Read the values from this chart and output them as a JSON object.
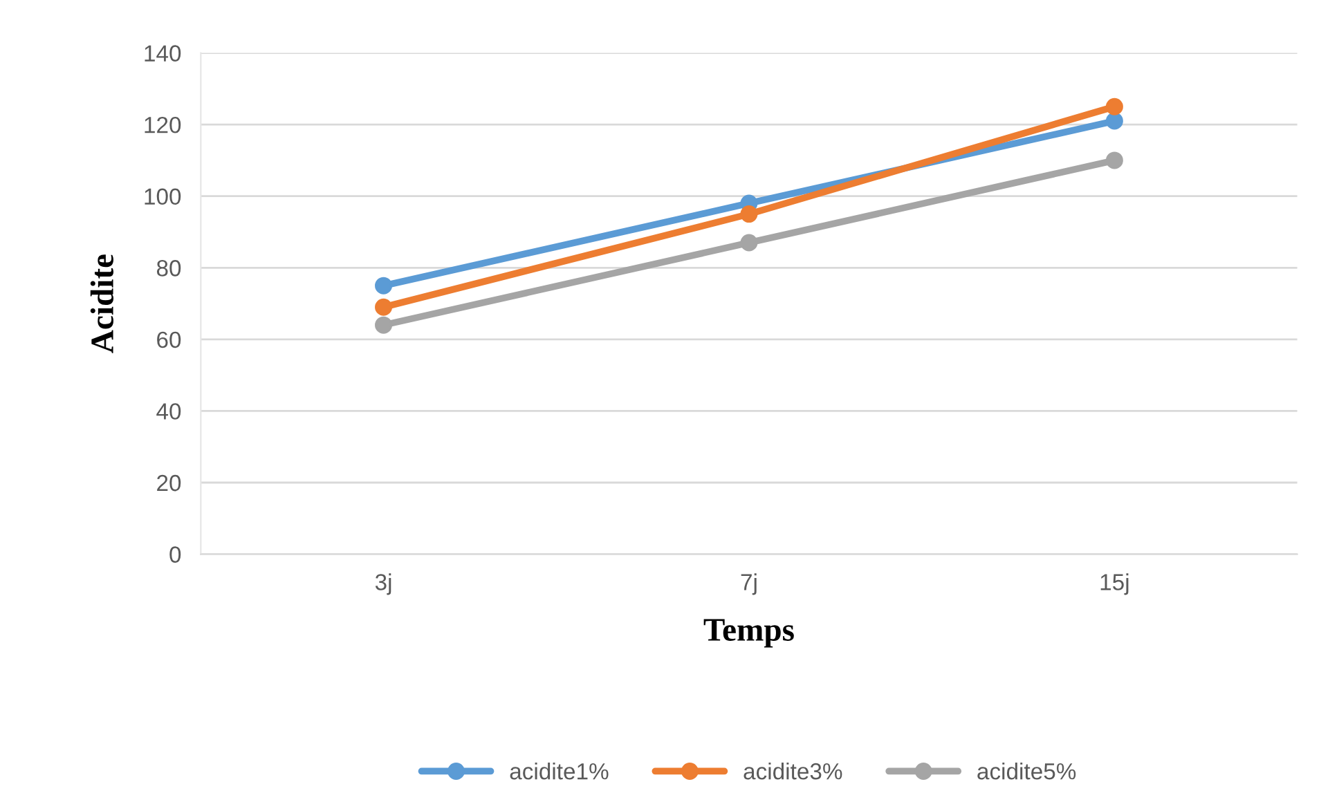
{
  "chart_data": {
    "type": "line",
    "xlabel": "Temps",
    "ylabel": "Acidite",
    "categories": [
      "3j",
      "7j",
      "15j"
    ],
    "series": [
      {
        "name": "acidite1%",
        "color": "#5b9bd5",
        "values": [
          75,
          98,
          121
        ]
      },
      {
        "name": "acidite3%",
        "color": "#ed7d31",
        "values": [
          69,
          95,
          125
        ]
      },
      {
        "name": "acidite5%",
        "color": "#a5a5a5",
        "values": [
          64,
          87,
          110
        ]
      }
    ],
    "ylim": [
      0,
      140
    ],
    "yticks": [
      0,
      20,
      40,
      60,
      80,
      100,
      120,
      140
    ],
    "grid": "y",
    "legend": "bottom",
    "marker": "circle",
    "line_style": "solid"
  }
}
